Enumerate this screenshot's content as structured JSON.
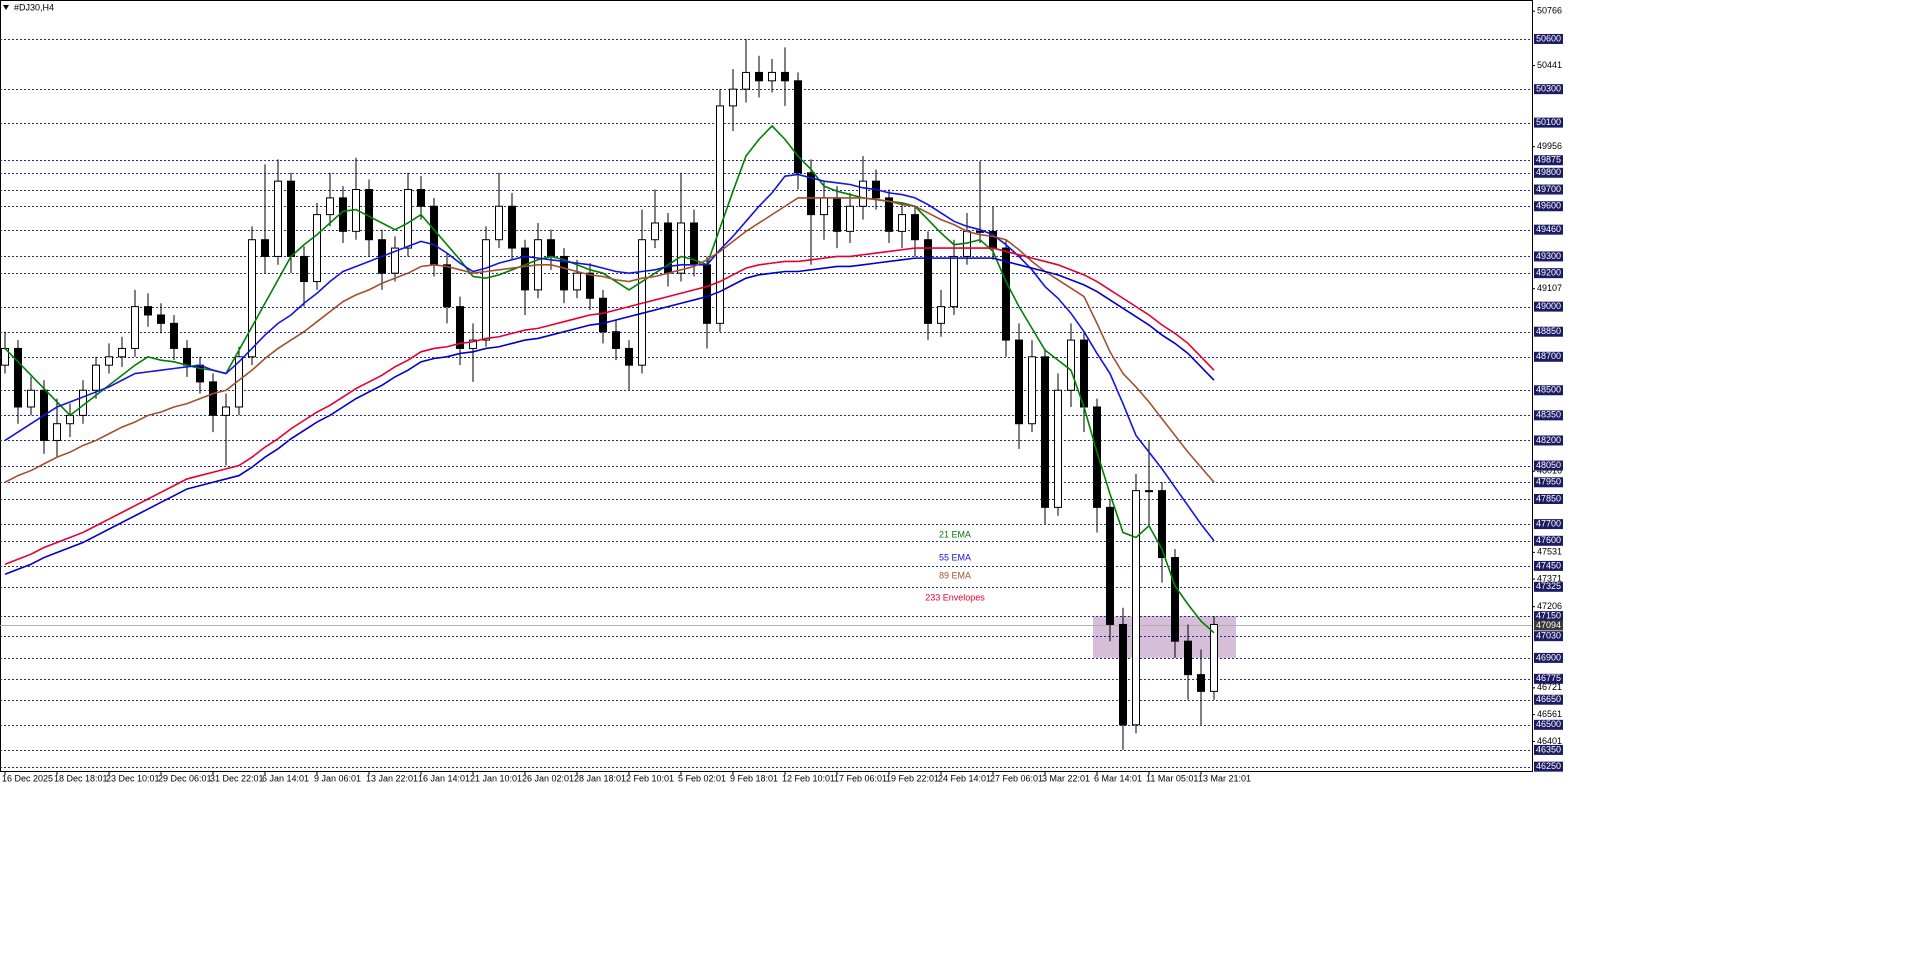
{
  "chart_data": {
    "type": "candlestick",
    "title": "#DJ30,H4",
    "categories": [
      "16 Dec 2025",
      null,
      null,
      null,
      "18 Dec 18:01",
      null,
      null,
      null,
      "23 Dec 10:01",
      null,
      null,
      null,
      "29 Dec 06:01",
      null,
      null,
      null,
      "31 Dec 22:01",
      null,
      null,
      null,
      "6 Jan 14:01",
      null,
      null,
      null,
      "9 Jan 06:01",
      null,
      null,
      null,
      "13 Jan 22:01",
      null,
      null,
      null,
      "16 Jan 14:01",
      null,
      null,
      null,
      "21 Jan 10:01",
      null,
      null,
      null,
      "26 Jan 02:01",
      null,
      null,
      null,
      "28 Jan 18:01",
      null,
      null,
      null,
      "2 Feb 10:01",
      null,
      null,
      null,
      "5 Feb 02:01",
      null,
      null,
      null,
      "9 Feb 18:01",
      null,
      null,
      null,
      "12 Feb 10:01",
      null,
      null,
      null,
      "17 Feb 06:01",
      null,
      null,
      null,
      "19 Feb 22:01",
      null,
      null,
      null,
      "24 Feb 14:01",
      null,
      null,
      null,
      "27 Feb 06:01",
      null,
      null,
      null,
      "3 Mar 22:01",
      null,
      null,
      null,
      "6 Mar 14:01",
      null,
      null,
      null,
      "11 Mar 05:01",
      null,
      null,
      null,
      "13 Mar 21:01",
      null
    ],
    "open": [
      48650,
      48750,
      48400,
      48500,
      48200,
      48300,
      48350,
      48500,
      48650,
      48700,
      48750,
      49000,
      48950,
      48900,
      48750,
      48650,
      48550,
      48350,
      48400,
      48700,
      49400,
      49300,
      49750,
      49300,
      49150,
      49550,
      49650,
      49450,
      49700,
      49400,
      49200,
      49350,
      49700,
      49600,
      49250,
      49000,
      48750,
      48800,
      49400,
      49600,
      49350,
      49100,
      49400,
      49300,
      49100,
      49200,
      49050,
      48850,
      48750,
      48650,
      49400,
      49500,
      49200,
      49500,
      49250,
      48900,
      50200,
      50300,
      50400,
      50350,
      50400,
      50350,
      49800,
      49550,
      49650,
      49450,
      49600,
      49750,
      49650,
      49450,
      49550,
      49400,
      48900,
      49000,
      49300,
      49450,
      49450,
      49350,
      48800,
      48300,
      48700,
      47800,
      48500,
      48800,
      48400,
      47800,
      47100,
      46500,
      47900,
      47900,
      47500,
      47000,
      46800,
      46700
    ],
    "high": [
      48850,
      48800,
      48580,
      48560,
      48450,
      48420,
      48560,
      48700,
      48780,
      48820,
      49100,
      49080,
      49020,
      48950,
      48800,
      48700,
      48600,
      48480,
      48760,
      49480,
      49850,
      49880,
      49800,
      49360,
      49620,
      49800,
      49720,
      49890,
      49760,
      49460,
      49420,
      49800,
      49780,
      49650,
      49320,
      49060,
      48900,
      49480,
      49800,
      49680,
      49400,
      49500,
      49460,
      49350,
      49280,
      49260,
      49100,
      48920,
      48800,
      49580,
      49700,
      49560,
      49800,
      49580,
      49300,
      50300,
      50420,
      50600,
      50500,
      50480,
      50550,
      50400,
      49880,
      49750,
      49720,
      49680,
      49900,
      49820,
      49700,
      49620,
      49600,
      49450,
      49100,
      49400,
      49560,
      49870,
      49600,
      49400,
      48900,
      48800,
      48750,
      48600,
      48900,
      48850,
      48450,
      47850,
      47200,
      48000,
      48200,
      47950,
      47550,
      47100,
      46950,
      47150
    ],
    "low": [
      48600,
      48300,
      48350,
      48120,
      48100,
      48220,
      48300,
      48450,
      48600,
      48640,
      48700,
      48880,
      48840,
      48680,
      48580,
      48480,
      48250,
      48050,
      48350,
      48650,
      49200,
      49250,
      49200,
      49000,
      49100,
      49480,
      49380,
      49400,
      49300,
      49100,
      49150,
      49300,
      49520,
      49180,
      48900,
      48650,
      48550,
      48760,
      49350,
      49280,
      48950,
      49050,
      49220,
      49020,
      49050,
      48980,
      48780,
      48680,
      48500,
      48600,
      49350,
      49120,
      49150,
      49180,
      48750,
      48850,
      50050,
      50220,
      50250,
      50280,
      50200,
      49700,
      49250,
      49400,
      49350,
      49380,
      49520,
      49580,
      49380,
      49350,
      49300,
      48800,
      48820,
      48950,
      49250,
      49380,
      49280,
      48700,
      48150,
      48250,
      47700,
      47750,
      48400,
      48250,
      47650,
      47000,
      46350,
      46450,
      47700,
      47350,
      46900,
      46650,
      46500,
      46650
    ],
    "close": [
      48750,
      48400,
      48500,
      48200,
      48300,
      48350,
      48500,
      48650,
      48700,
      48750,
      49000,
      48950,
      48900,
      48750,
      48650,
      48550,
      48350,
      48400,
      48700,
      49400,
      49300,
      49750,
      49300,
      49150,
      49550,
      49650,
      49450,
      49700,
      49400,
      49200,
      49350,
      49700,
      49600,
      49250,
      49000,
      48750,
      48800,
      49400,
      49600,
      49350,
      49100,
      49400,
      49300,
      49100,
      49200,
      49050,
      48850,
      48750,
      48650,
      49400,
      49500,
      49200,
      49500,
      49250,
      48900,
      50200,
      50300,
      50400,
      50350,
      50400,
      50350,
      49800,
      49550,
      49650,
      49450,
      49600,
      49750,
      49650,
      49450,
      49550,
      49400,
      48900,
      49000,
      49300,
      49450,
      49450,
      49350,
      48800,
      48300,
      48700,
      47800,
      48500,
      48800,
      48400,
      47800,
      47100,
      46500,
      47900,
      47900,
      47500,
      47000,
      46800,
      46700,
      47100
    ],
    "series": [
      {
        "name": "21 EMA",
        "color": "#008000",
        "values": [
          48750,
          48670,
          48590,
          48510,
          48430,
          48350,
          48410,
          48470,
          48530,
          48590,
          48650,
          48700,
          48680,
          48670,
          48650,
          48630,
          48620,
          48600,
          48740,
          48880,
          49020,
          49160,
          49300,
          49370,
          49430,
          49500,
          49570,
          49580,
          49540,
          49500,
          49460,
          49500,
          49550,
          49460,
          49370,
          49280,
          49180,
          49170,
          49190,
          49220,
          49250,
          49280,
          49300,
          49280,
          49250,
          49220,
          49200,
          49150,
          49100,
          49150,
          49200,
          49250,
          49300,
          49280,
          49250,
          49470,
          49690,
          49900,
          50000,
          50080,
          50000,
          49900,
          49820,
          49720,
          49690,
          49670,
          49650,
          49640,
          49630,
          49620,
          49600,
          49520,
          49440,
          49370,
          49380,
          49400,
          49330,
          49150,
          49000,
          48870,
          48740,
          48680,
          48620,
          48400,
          48130,
          47880,
          47650,
          47620,
          47690,
          47550,
          47330,
          47220,
          47120,
          47050
        ]
      },
      {
        "name": "55 EMA",
        "color": "#1414e0",
        "values": [
          48200,
          48250,
          48300,
          48350,
          48400,
          48430,
          48460,
          48490,
          48520,
          48560,
          48600,
          48610,
          48620,
          48630,
          48640,
          48650,
          48620,
          48600,
          48670,
          48750,
          48830,
          48900,
          48950,
          49020,
          49080,
          49150,
          49210,
          49240,
          49270,
          49300,
          49330,
          49360,
          49390,
          49370,
          49320,
          49260,
          49210,
          49230,
          49260,
          49280,
          49300,
          49290,
          49280,
          49270,
          49260,
          49250,
          49230,
          49210,
          49200,
          49210,
          49220,
          49240,
          49250,
          49250,
          49250,
          49340,
          49420,
          49510,
          49600,
          49680,
          49780,
          49790,
          49770,
          49750,
          49740,
          49730,
          49710,
          49700,
          49680,
          49670,
          49650,
          49610,
          49560,
          49510,
          49480,
          49460,
          49430,
          49370,
          49300,
          49220,
          49120,
          49050,
          48960,
          48850,
          48720,
          48600,
          48420,
          48230,
          48130,
          48030,
          47920,
          47810,
          47700,
          47600
        ]
      },
      {
        "name": "89 EMA",
        "color": "#a0522d",
        "values": [
          47950,
          47990,
          48020,
          48060,
          48100,
          48130,
          48170,
          48200,
          48240,
          48280,
          48310,
          48350,
          48370,
          48400,
          48420,
          48450,
          48480,
          48500,
          48560,
          48620,
          48690,
          48750,
          48800,
          48850,
          48910,
          48970,
          49030,
          49070,
          49100,
          49140,
          49170,
          49200,
          49240,
          49250,
          49240,
          49220,
          49200,
          49210,
          49220,
          49230,
          49240,
          49250,
          49250,
          49230,
          49210,
          49190,
          49180,
          49160,
          49150,
          49170,
          49180,
          49200,
          49220,
          49240,
          49280,
          49330,
          49390,
          49450,
          49500,
          49550,
          49600,
          49650,
          49650,
          49650,
          49650,
          49650,
          49650,
          49640,
          49630,
          49610,
          49600,
          49560,
          49520,
          49490,
          49450,
          49430,
          49420,
          49400,
          49340,
          49270,
          49210,
          49160,
          49110,
          49060,
          48900,
          48730,
          48600,
          48520,
          48430,
          48330,
          48230,
          48130,
          48040,
          47950
        ]
      },
      {
        "name": "233 Envelopes",
        "color": "#e6002e",
        "lower_color": "#0000c8",
        "values": [
          47460,
          47490,
          47520,
          47560,
          47590,
          47620,
          47650,
          47690,
          47730,
          47770,
          47810,
          47850,
          47890,
          47930,
          47970,
          47990,
          48010,
          48030,
          48050,
          48100,
          48160,
          48210,
          48270,
          48320,
          48370,
          48410,
          48460,
          48510,
          48550,
          48590,
          48640,
          48680,
          48730,
          48750,
          48760,
          48780,
          48790,
          48810,
          48820,
          48840,
          48860,
          48870,
          48890,
          48910,
          48930,
          48950,
          48960,
          48980,
          49000,
          49020,
          49040,
          49060,
          49080,
          49100,
          49120,
          49150,
          49190,
          49230,
          49250,
          49260,
          49270,
          49270,
          49280,
          49290,
          49300,
          49300,
          49310,
          49320,
          49330,
          49340,
          49350,
          49350,
          49350,
          49350,
          49350,
          49350,
          49350,
          49330,
          49310,
          49290,
          49270,
          49250,
          49220,
          49190,
          49150,
          49100,
          49050,
          49000,
          48950,
          48890,
          48840,
          48780,
          48700,
          48620
        ],
        "lower": [
          47400,
          47430,
          47460,
          47500,
          47530,
          47560,
          47590,
          47630,
          47670,
          47710,
          47750,
          47790,
          47830,
          47870,
          47910,
          47930,
          47950,
          47970,
          47990,
          48040,
          48100,
          48150,
          48210,
          48260,
          48310,
          48350,
          48400,
          48450,
          48490,
          48530,
          48580,
          48620,
          48670,
          48690,
          48700,
          48720,
          48730,
          48750,
          48760,
          48780,
          48800,
          48810,
          48830,
          48850,
          48870,
          48890,
          48900,
          48920,
          48940,
          48960,
          48980,
          49000,
          49020,
          49040,
          49060,
          49090,
          49130,
          49170,
          49190,
          49200,
          49210,
          49210,
          49220,
          49230,
          49240,
          49240,
          49250,
          49260,
          49270,
          49280,
          49290,
          49290,
          49290,
          49290,
          49290,
          49290,
          49290,
          49270,
          49250,
          49230,
          49210,
          49190,
          49160,
          49130,
          49090,
          49040,
          48990,
          48940,
          48890,
          48830,
          48780,
          48720,
          48640,
          48560
        ]
      }
    ],
    "ylim": [
      46224,
      50827
    ],
    "yticks": [
      50766,
      50441,
      49956,
      49107,
      48016,
      47531,
      47371,
      47206,
      46721,
      46561,
      46401
    ],
    "levels": [
      50600,
      50300,
      50100,
      49875,
      49800,
      49700,
      49600,
      49460,
      49300,
      49200,
      49000,
      48850,
      48700,
      48500,
      48350,
      48200,
      48050,
      47950,
      47850,
      47700,
      47600,
      47450,
      47325,
      47150,
      47030,
      46900,
      46775,
      46650,
      46500,
      46350,
      46250
    ],
    "bid": 47094,
    "zone": {
      "low": 46900,
      "high": 47150,
      "color": "#c8a8cc"
    }
  }
}
